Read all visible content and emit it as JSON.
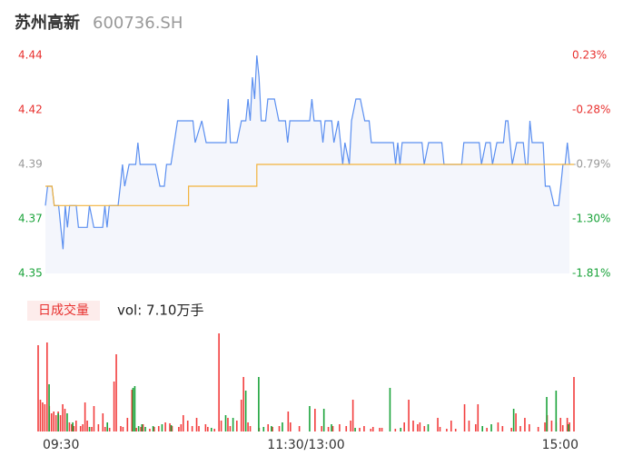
{
  "chart_data": [
    {
      "type": "line",
      "title": "苏州高新",
      "subtitle": "600736.SH",
      "xlim": [
        0,
        240
      ],
      "ylim": [
        4.35,
        4.44
      ],
      "y2lim": [
        -1.81,
        0.23
      ],
      "yticks": [
        {
          "value": 4.44,
          "label": "4.44"
        },
        {
          "value": 4.4175,
          "label": "4.42"
        },
        {
          "value": 4.395,
          "label": "4.39"
        },
        {
          "value": 4.3725,
          "label": "4.37"
        },
        {
          "value": 4.35,
          "label": "4.35"
        }
      ],
      "y2ticks": [
        {
          "value": 0.23,
          "label": "0.23%"
        },
        {
          "value": -0.28,
          "label": "-0.28%"
        },
        {
          "value": -0.79,
          "label": "-0.79%"
        },
        {
          "value": -1.3,
          "label": "-1.30%"
        },
        {
          "value": -1.81,
          "label": "-1.81%"
        }
      ],
      "tick_colors": [
        "#e8312f",
        "#e8312f",
        "#999999",
        "#1aa33a",
        "#1aa33a"
      ],
      "area_color": "#f4f6fc",
      "series": [
        {
          "color": "#5b8ff0",
          "x": [
            0,
            1,
            3,
            4,
            6,
            7,
            8,
            9,
            10,
            11,
            14,
            15,
            19,
            20,
            22,
            26,
            27,
            28,
            29,
            33,
            34,
            35,
            36,
            38,
            41,
            42,
            43,
            50,
            52,
            54,
            55,
            57,
            60,
            67,
            68,
            71,
            73,
            82,
            83,
            84,
            87,
            89,
            91,
            92,
            93,
            94,
            95,
            96,
            97,
            98,
            100,
            101,
            104,
            106,
            109,
            110,
            111,
            120,
            121,
            122,
            125,
            126,
            127,
            130,
            131,
            133,
            134,
            135,
            136,
            138,
            139,
            141,
            143,
            145,
            147,
            148,
            158,
            159,
            160,
            161,
            162,
            171,
            172,
            174,
            180,
            181,
            189,
            190,
            197,
            198,
            200,
            202,
            203,
            205,
            208,
            209,
            210,
            211,
            212,
            214,
            217,
            218,
            219,
            220,
            221,
            226,
            227,
            229,
            231,
            233,
            234,
            235,
            236,
            237,
            238
          ],
          "values": [
            4.378,
            4.386,
            4.386,
            4.378,
            4.378,
            4.369,
            4.36,
            4.378,
            4.369,
            4.378,
            4.378,
            4.369,
            4.369,
            4.378,
            4.369,
            4.369,
            4.378,
            4.369,
            4.378,
            4.378,
            4.386,
            4.395,
            4.386,
            4.395,
            4.395,
            4.404,
            4.395,
            4.395,
            4.386,
            4.386,
            4.395,
            4.395,
            4.413,
            4.413,
            4.404,
            4.413,
            4.404,
            4.404,
            4.422,
            4.404,
            4.404,
            4.413,
            4.413,
            4.422,
            4.413,
            4.431,
            4.422,
            4.44,
            4.431,
            4.413,
            4.413,
            4.422,
            4.422,
            4.413,
            4.413,
            4.404,
            4.413,
            4.413,
            4.422,
            4.413,
            4.413,
            4.404,
            4.413,
            4.413,
            4.404,
            4.413,
            4.404,
            4.395,
            4.404,
            4.395,
            4.413,
            4.422,
            4.422,
            4.413,
            4.413,
            4.404,
            4.404,
            4.395,
            4.404,
            4.395,
            4.404,
            4.404,
            4.395,
            4.404,
            4.404,
            4.395,
            4.395,
            4.404,
            4.404,
            4.395,
            4.404,
            4.404,
            4.395,
            4.404,
            4.404,
            4.413,
            4.413,
            4.404,
            4.395,
            4.404,
            4.404,
            4.395,
            4.395,
            4.413,
            4.404,
            4.404,
            4.386,
            4.386,
            4.378,
            4.378,
            4.386,
            4.395,
            4.395,
            4.404,
            4.395
          ]
        },
        {
          "color": "#f2b33d",
          "x": [
            0,
            3,
            4,
            65,
            65,
            96,
            96,
            240
          ],
          "values": [
            4.386,
            4.386,
            4.378,
            4.378,
            4.386,
            4.386,
            4.395,
            4.395
          ]
        }
      ]
    },
    {
      "type": "bar",
      "title": "日成交量",
      "subtitle": "vol: 7.10万手",
      "xlim": [
        0,
        240
      ],
      "ylim": [
        0,
        110
      ],
      "xticks": [
        {
          "value": 0,
          "label": "09:30"
        },
        {
          "value": 120,
          "label": "11:30/13:00"
        },
        {
          "value": 240,
          "label": "15:00"
        }
      ],
      "series": [
        {
          "color": "#f23d3d",
          "x": [
            0,
            1,
            2,
            3,
            4,
            5,
            6,
            7,
            8,
            9,
            10,
            11,
            12,
            14,
            15,
            16,
            17,
            19,
            20,
            21,
            22,
            24,
            25,
            27,
            29,
            30,
            32,
            34,
            35,
            37,
            38,
            40,
            42,
            44,
            46,
            47,
            50,
            52,
            54,
            57,
            59,
            60,
            63,
            64,
            65,
            67,
            69,
            71,
            72,
            75,
            76,
            79,
            81,
            82,
            85,
            86,
            89,
            91,
            92,
            94,
            95,
            99,
            103,
            105,
            108,
            112,
            113,
            117,
            124,
            127,
            130,
            132,
            135,
            138,
            140,
            141,
            144,
            146,
            149,
            150,
            153,
            154,
            160,
            164,
            166,
            168,
            170,
            171,
            173,
            179,
            180,
            183,
            185,
            187,
            191,
            193,
            196,
            197,
            201,
            206,
            208,
            212,
            214,
            216,
            218,
            220,
            224,
            227,
            228,
            230,
            232,
            234,
            235,
            237,
            238,
            240
          ],
          "values": [
            95,
            35,
            32,
            30,
            98,
            28,
            20,
            22,
            18,
            22,
            18,
            30,
            25,
            10,
            8,
            6,
            12,
            6,
            8,
            32,
            12,
            5,
            28,
            8,
            20,
            5,
            4,
            55,
            85,
            6,
            5,
            15,
            46,
            4,
            5,
            8,
            3,
            5,
            6,
            10,
            9,
            6,
            5,
            8,
            18,
            12,
            6,
            15,
            6,
            8,
            5,
            3,
            108,
            12,
            15,
            6,
            12,
            35,
            60,
            10,
            6,
            4,
            8,
            5,
            6,
            22,
            10,
            6,
            25,
            6,
            5,
            6,
            8,
            6,
            12,
            35,
            4,
            6,
            3,
            5,
            4,
            4,
            3,
            10,
            35,
            12,
            8,
            10,
            6,
            15,
            5,
            3,
            12,
            3,
            30,
            12,
            8,
            30,
            4,
            10,
            6,
            4,
            20,
            6,
            15,
            8,
            5,
            10,
            18,
            12,
            10,
            15,
            7,
            15,
            10,
            60
          ]
        },
        {
          "color": "#1aa33a",
          "x": [
            4.9,
            9,
            13,
            15.5,
            23,
            31,
            42.5,
            43.3,
            45,
            46.5,
            48,
            51.5,
            55.5,
            59.6,
            77.6,
            84,
            87.3,
            93,
            98.8,
            101,
            104.5,
            109.4,
            121.6,
            128,
            131.4,
            142,
            157.6,
            162.4,
            174.7,
            199,
            203,
            213,
            227.8,
            232,
            237.6
          ],
          "values": [
            52,
            20,
            20,
            10,
            5,
            10,
            48,
            50,
            6,
            8,
            5,
            6,
            8,
            7,
            4,
            18,
            15,
            45,
            60,
            5,
            6,
            10,
            28,
            25,
            8,
            4,
            48,
            4,
            8,
            6,
            8,
            25,
            38,
            45,
            8
          ]
        }
      ]
    }
  ]
}
